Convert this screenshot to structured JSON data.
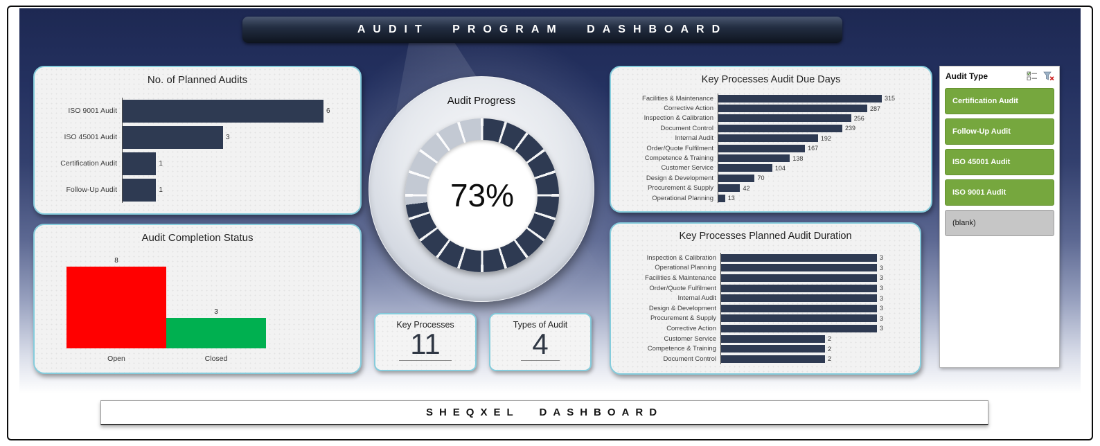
{
  "header": {
    "title": "AUDIT PROGRAM DASHBOARD"
  },
  "footer": {
    "title": "SHEQXEL DASHBOARD"
  },
  "cards": {
    "key_processes": {
      "label": "Key Processes",
      "value": "11"
    },
    "types_of_audit": {
      "label": "Types of Audit",
      "value": "4"
    }
  },
  "slicer": {
    "title": "Audit Type",
    "icons": [
      "multi-select-icon",
      "clear-filter-icon"
    ],
    "selected_color": "#76a73e",
    "blank_color": "#c6c6c6",
    "items": [
      {
        "label": "Certification Audit",
        "state": "selected"
      },
      {
        "label": "Follow-Up Audit",
        "state": "selected"
      },
      {
        "label": "ISO 45001 Audit",
        "state": "selected"
      },
      {
        "label": "ISO 9001 Audit",
        "state": "selected"
      },
      {
        "label": "(blank)",
        "state": "blank"
      }
    ]
  },
  "chart_data": [
    {
      "id": "planned_audits",
      "type": "bar",
      "orientation": "horizontal",
      "title": "No. of Planned Audits",
      "categories": [
        "ISO 9001 Audit",
        "ISO 45001 Audit",
        "Certification Audit",
        "Follow-Up Audit"
      ],
      "values": [
        6,
        3,
        1,
        1
      ],
      "bar_color": "#2e3a52",
      "xlim": [
        0,
        6.5
      ],
      "value_labels": true
    },
    {
      "id": "completion_status",
      "type": "bar",
      "orientation": "vertical",
      "title": "Audit Completion Status",
      "categories": [
        "Open",
        "Closed"
      ],
      "values": [
        8,
        3
      ],
      "colors": [
        "#ff0000",
        "#00b050"
      ],
      "ylim": [
        0,
        8.5
      ],
      "value_labels": true
    },
    {
      "id": "audit_progress",
      "type": "donut",
      "title": "Audit Progress",
      "value": 73,
      "label": "73%",
      "fill_color": "#2e3a52",
      "rest_color": "#c3c9d3"
    },
    {
      "id": "due_days",
      "type": "bar",
      "orientation": "horizontal",
      "title": "Key Processes Audit Due Days",
      "categories": [
        "Facilities & Maintenance",
        "Corrective Action",
        "Inspection & Calibration",
        "Document Control",
        "Internal Audit",
        "Order/Quote Fulfilment",
        "Competence & Training",
        "Customer Service",
        "Design & Development",
        "Procurement & Supply",
        "Operational Planning"
      ],
      "values": [
        315,
        287,
        256,
        239,
        192,
        167,
        138,
        104,
        70,
        42,
        13
      ],
      "bar_color": "#2e3a52",
      "xlim": [
        0,
        340
      ],
      "value_labels": true
    },
    {
      "id": "planned_duration",
      "type": "bar",
      "orientation": "horizontal",
      "title": "Key Processes Planned Audit Duration",
      "categories": [
        "Inspection & Calibration",
        "Operational Planning",
        "Facilities & Maintenance",
        "Order/Quote Fulfilment",
        "Internal Audit",
        "Design & Development",
        "Procurement & Supply",
        "Corrective Action",
        "Customer Service",
        "Competence & Training",
        "Document Control"
      ],
      "values": [
        3,
        3,
        3,
        3,
        3,
        3,
        3,
        3,
        2,
        2,
        2
      ],
      "bar_color": "#2e3a52",
      "xlim": [
        0,
        3.2
      ],
      "value_labels": true
    }
  ]
}
